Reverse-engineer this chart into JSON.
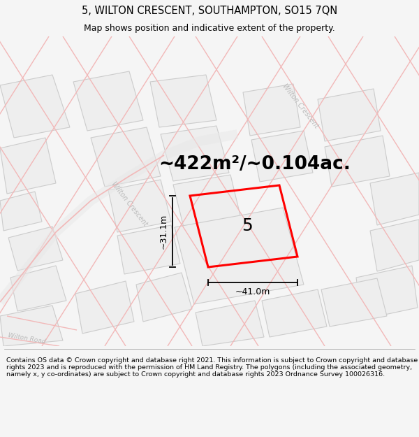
{
  "title": "5, WILTON CRESCENT, SOUTHAMPTON, SO15 7QN",
  "subtitle": "Map shows position and indicative extent of the property.",
  "area_text": "~422m²/~0.104ac.",
  "label_number": "5",
  "dim_width": "~41.0m",
  "dim_height": "~31.1m",
  "footer": "Contains OS data © Crown copyright and database right 2021. This information is subject to Crown copyright and database rights 2023 and is reproduced with the permission of HM Land Registry. The polygons (including the associated geometry, namely x, y co-ordinates) are subject to Crown copyright and database rights 2023 Ordnance Survey 100026316.",
  "bg_color": "#f5f5f5",
  "map_bg": "#ffffff",
  "road_color": "#f2b8b8",
  "building_fill": "#eeeeee",
  "building_edge": "#cccccc",
  "plot_color": "#ff0000",
  "street_label_color": "#bbbbbb",
  "title_fontsize": 10.5,
  "subtitle_fontsize": 9,
  "area_fontsize": 20,
  "number_fontsize": 16,
  "dim_fontsize": 9,
  "footer_fontsize": 6.8
}
